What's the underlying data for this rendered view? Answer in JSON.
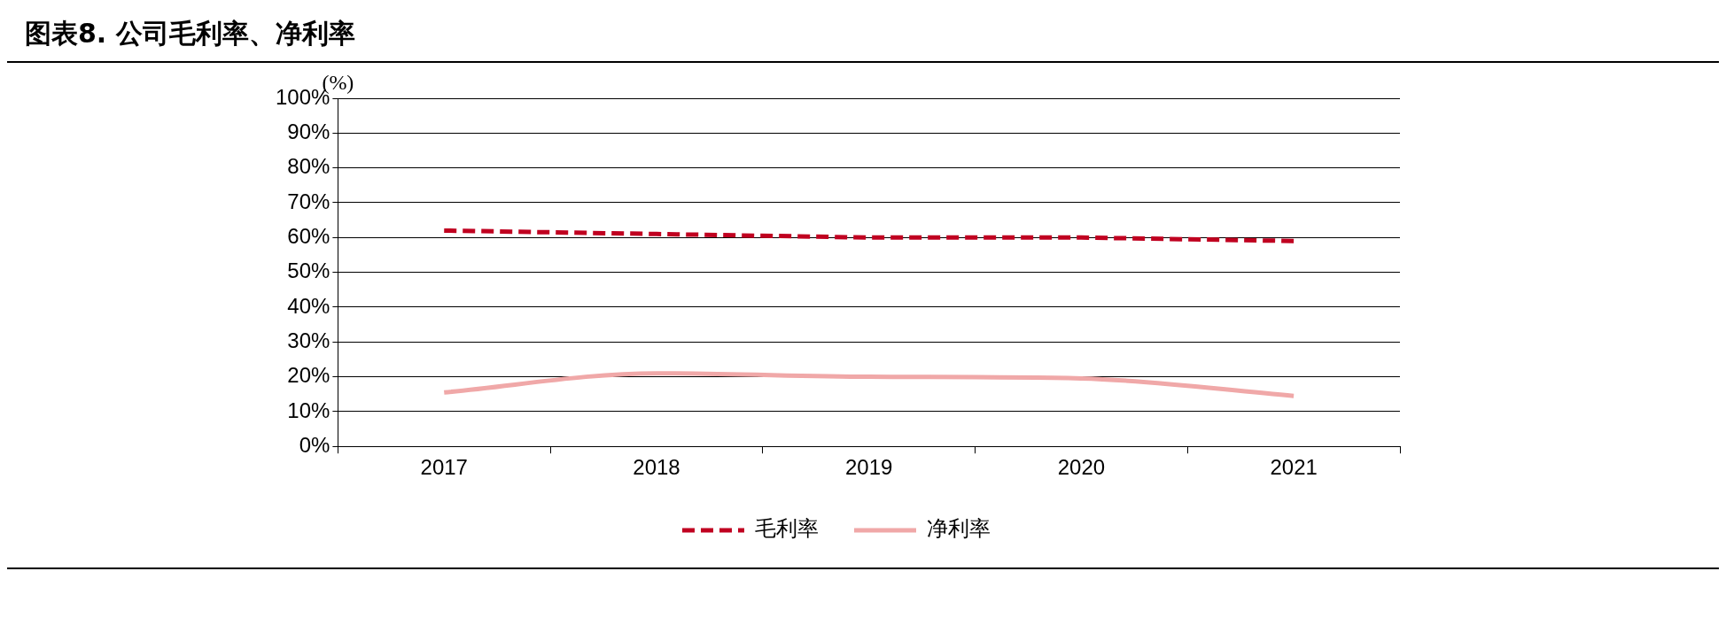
{
  "chart_data": {
    "type": "line",
    "title": "图表8. 公司毛利率、净利率",
    "ylabel": "(%)",
    "categories": [
      "2017",
      "2018",
      "2019",
      "2020",
      "2021"
    ],
    "series": [
      {
        "name": "毛利率",
        "color": "#c00020",
        "values": [
          62,
          61,
          60,
          60,
          59
        ],
        "line_style": "dashed"
      },
      {
        "name": "净利率",
        "color": "#f0a8a8",
        "values": [
          15.5,
          21,
          20,
          19.5,
          14.5
        ],
        "line_style": "solid"
      }
    ],
    "ylim": [
      0,
      100
    ],
    "yticks": [
      {
        "value": 0,
        "label": "0%"
      },
      {
        "value": 10,
        "label": "10%"
      },
      {
        "value": 20,
        "label": "20%"
      },
      {
        "value": 30,
        "label": "30%"
      },
      {
        "value": 40,
        "label": "40%"
      },
      {
        "value": 50,
        "label": "50%"
      },
      {
        "value": 60,
        "label": "60%"
      },
      {
        "value": 70,
        "label": "70%"
      },
      {
        "value": 80,
        "label": "80%"
      },
      {
        "value": 90,
        "label": "90%"
      },
      {
        "value": 100,
        "label": "100%"
      }
    ],
    "grid": "y",
    "legend": "bottom",
    "marker": "none"
  }
}
